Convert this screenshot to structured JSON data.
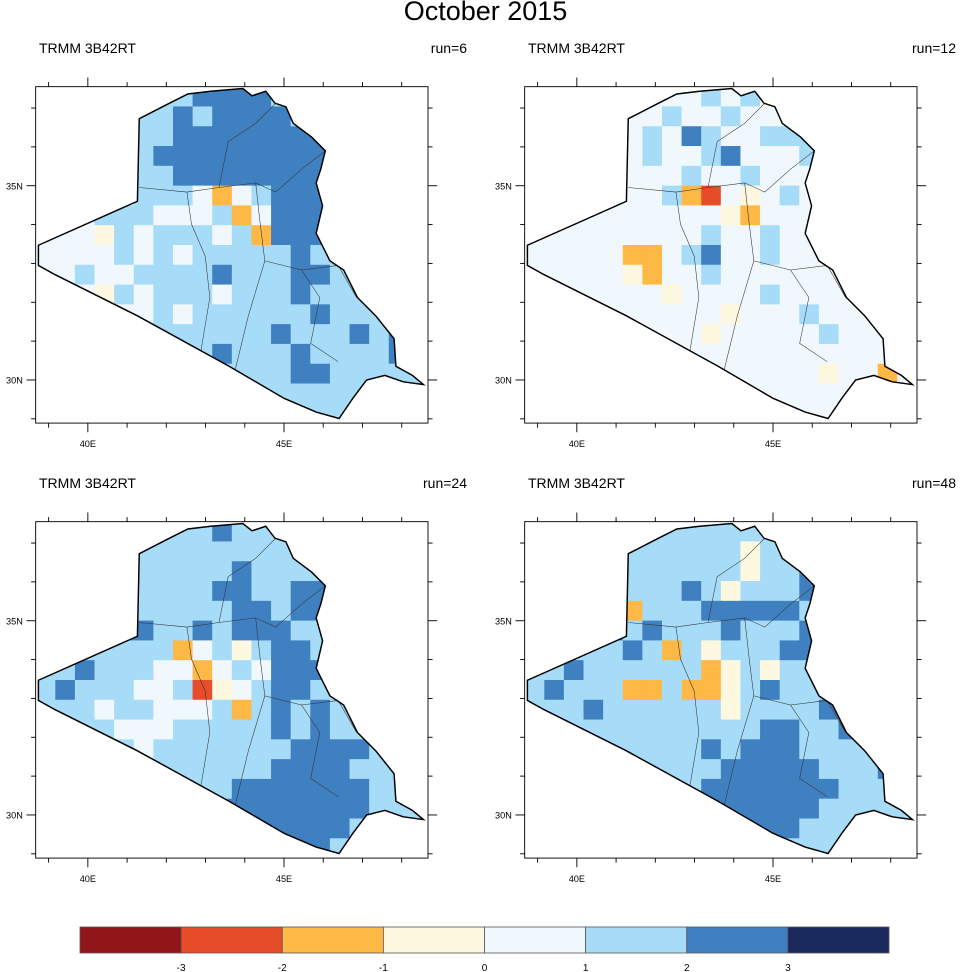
{
  "title": "October 2015",
  "colors": {
    "r": "#e84d2a",
    "o": "#fdb845",
    "a": "#fff8e0",
    "b": "#f0f8fd",
    "c": "#a6dcf7",
    "d": "#3f80c0"
  },
  "chart_data": {
    "type": "heatmap",
    "title": "October 2015",
    "lon_ticks": [
      "40E",
      "45E"
    ],
    "lat_ticks": [
      "35N",
      "30N"
    ],
    "lon_range": [
      38.67,
      48.67
    ],
    "lat_range": [
      28.89,
      37.55
    ],
    "grid_resolution_deg": 0.5,
    "legend": {
      "levels": [
        -3,
        -2,
        -1,
        0,
        1,
        2,
        3
      ],
      "labels": [
        "-3",
        "-2",
        "-1",
        "0",
        "1",
        "2",
        "3"
      ],
      "colors": [
        "#921619",
        "#e84d2a",
        "#fdb845",
        "#fff8e0",
        "#f0f8fd",
        "#a6dcf7",
        "#3f80c0",
        "#1b2a5e"
      ]
    },
    "category_key": {
      "r": "-3 to -2",
      "o": "-2 to -1",
      "a": "-1 to 0",
      "b": "0 to 1",
      "c": "1 to 2",
      "d": "2 to 3"
    },
    "panels": [
      {
        "left": "TRMM 3B42RT",
        "right": "run=6",
        "grid_rows": [
          "ccccccccddddcco.....",
          "cccccccdcddddcdc....",
          "cccccccddddddddd....",
          "ccccccdddddddddd....",
          "cccccccddddddddd....",
          "ccccbcccbobcdddc....",
          "cbbcccbbbcobdddcc...",
          "bbbacbcccbcoddddc...",
          "bbbbcbcbcccccdcccc..",
          "bbcbbccccdcccddcccc.",
          "bbbacbcccbcccdcccdc.",
          "bbbbbbcbccccccdcccdc",
          "bbbbbbccccccdcccdcdd",
          "cccccccccdcccdccccdd",
          "cccccccccccccddccccc",
          "cccccccccccccccccccc",
          "cccccccccccccccccccc"
        ]
      },
      {
        "left": "TRMM 3B42RT",
        "right": "run=12",
        "grid_rows": [
          "bbbbbbbbbcbcacb.....",
          "bbbbbbbcbbcbbbcb....",
          "bbbbbbcbdcbbcccb....",
          "bbbbbbcbbcdbbbcab...",
          "bbbbbbbbcbbcbbbb....",
          "bbbbbbbcorbabcbb....",
          "bbbbbbbbbbaobbbb....",
          "bbbbbbbbbcbbcbbba...",
          "bbbbboobcdbbcbbbbc..",
          "bbbbbaobbcbbbbbbbbo.",
          "bbbbbbbabbbbcbbbbcc.",
          "bbbbbbbbbbabbbcbbbbb",
          "bbbbbbbbbabbbbbcbbbb",
          "bbbbbbbbbbbbbbbbbbbb",
          "bbbbbbbbbbbbbbbabbob",
          "bbbbbbbbbbbbbbbbbabb",
          "bbbbbbbbbbbbbbbbbbbb"
        ]
      },
      {
        "left": "TRMM 3B42RT",
        "right": "run=24",
        "grid_rows": [
          "cccccccccdcccccc....",
          "ccccccccccccccc.....",
          "ccccccccccdcccccb...",
          "cccccccccddccddcc...",
          "ccccccccccddcdddcc..",
          "cccdddccdcdddcccc...",
          "cccccccobcacddcc....",
          "ccdcccbbobcbdddcc...",
          "cdcccbbcrabcddcccc..",
          "cccbccbbbcocdcdccc..",
          "ccccbbbcccccdcdcccc.",
          "cccccbcccccccddddcc.",
          "ccccccccccccddddcccc",
          "ccccccccccdddddddccc",
          "cccccccccddddddddccc",
          "cccccccccdddddddcccc",
          "cccccccccddddddccccc"
        ]
      },
      {
        "left": "TRMM 3B42RT",
        "right": "run=48",
        "grid_rows": [
          "cccccccccccccco.....",
          "cccccccccccacccc....",
          "cccccccccccaccdcb...",
          "ccccccccdcacccdco...",
          "cccccocccdddddcdoc..",
          "ccccdcdcccdcccdcdc..",
          "cccccdcocacccddccc..",
          "ccdccccccoacaccdcc..",
          "cdcccoocooacdcccccc.",
          "cccdccccccaccccdccc.",
          "ccccccccccccddccdccc",
          "cccccccccdcdddccccdc",
          "ccccccccccdddddcccdc",
          "cccccccccdddddddcccc",
          "ccccccccdddddddccccc",
          "ccccccccddddddcccccc",
          "ccccccccccdddccccccc"
        ]
      }
    ]
  }
}
